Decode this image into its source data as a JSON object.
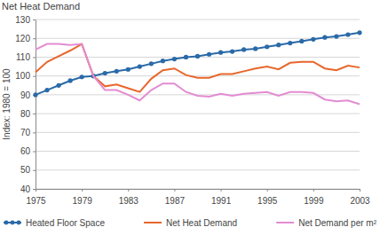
{
  "chart_data": {
    "type": "line",
    "title": "Net Heat Demand",
    "ylabel": "Index: 1980 = 100",
    "x": [
      1975,
      1976,
      1977,
      1978,
      1979,
      1980,
      1981,
      1982,
      1983,
      1984,
      1985,
      1986,
      1987,
      1988,
      1989,
      1990,
      1991,
      1992,
      1993,
      1994,
      1995,
      1996,
      1997,
      1998,
      1999,
      2000,
      2001,
      2002,
      2003
    ],
    "series": [
      {
        "name": "Heated Floor Space",
        "color": "#2a6aa8",
        "marker": "circle",
        "line_style": "solid",
        "values": [
          90,
          92.5,
          95,
          97.5,
          99.5,
          100,
          101.5,
          102.5,
          103.5,
          105,
          106.5,
          108,
          109,
          110,
          110.5,
          111.5,
          112.5,
          113,
          114,
          114.5,
          115.5,
          116.5,
          117.5,
          118.5,
          119.5,
          120.5,
          121,
          122,
          123
        ]
      },
      {
        "name": "Net Heat Demand",
        "color": "#e8662c",
        "marker": "none",
        "line_style": "solid",
        "values": [
          102,
          107.5,
          110.5,
          113.5,
          117,
          100,
          94.5,
          95.5,
          93.5,
          91.5,
          98.5,
          103,
          104,
          100.5,
          99,
          99,
          101,
          101,
          102.5,
          104,
          105,
          103.5,
          107,
          107.5,
          107.5,
          104,
          103,
          105.5,
          104.5
        ]
      },
      {
        "name": "Net Demand per m²",
        "color": "#e38cd2",
        "marker": "none",
        "line_style": "solid",
        "values": [
          114,
          117,
          117,
          116.5,
          117,
          100,
          92.5,
          92.5,
          90,
          87,
          92.5,
          96,
          96,
          91.5,
          89.5,
          89,
          90.5,
          89.5,
          90.5,
          91,
          91.5,
          89.5,
          91.5,
          91.5,
          91,
          87.5,
          86.5,
          87,
          85
        ]
      }
    ],
    "xlim": [
      1975,
      2003
    ],
    "xticks": [
      1975,
      1979,
      1983,
      1987,
      1991,
      1995,
      1999,
      2003
    ],
    "ylim": [
      40,
      130
    ],
    "yticks": [
      40,
      50,
      60,
      70,
      80,
      90,
      100,
      110,
      120,
      130
    ],
    "grid": true,
    "legend": "bottom"
  }
}
